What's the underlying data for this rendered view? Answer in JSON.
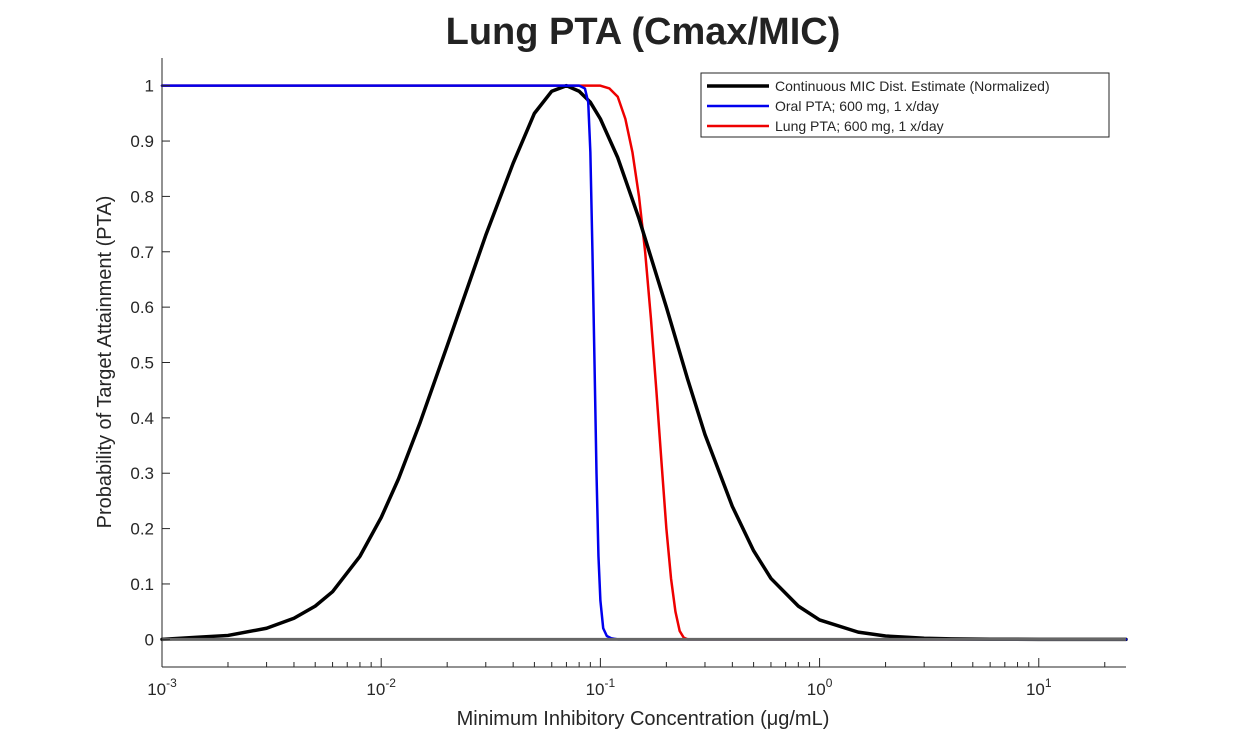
{
  "chart_data": {
    "type": "line",
    "title": "Lung PTA (Cmax/MIC)",
    "xlabel": "Minimum  Inhibitory  Concentration  (μg/mL)",
    "ylabel": "Probability of Target Attainment (PTA)",
    "x_scale": "log",
    "xlim": [
      0.001,
      25
    ],
    "ylim": [
      -0.05,
      1.05
    ],
    "x_ticks": [
      {
        "value": 0.001,
        "base": "10",
        "exp": "-3"
      },
      {
        "value": 0.01,
        "base": "10",
        "exp": "-2"
      },
      {
        "value": 0.1,
        "base": "10",
        "exp": "-1"
      },
      {
        "value": 1,
        "base": "10",
        "exp": "0"
      },
      {
        "value": 10,
        "base": "10",
        "exp": "1"
      }
    ],
    "y_ticks": [
      {
        "value": 0,
        "label": "0"
      },
      {
        "value": 0.1,
        "label": "0.1"
      },
      {
        "value": 0.2,
        "label": "0.2"
      },
      {
        "value": 0.3,
        "label": "0.3"
      },
      {
        "value": 0.4,
        "label": "0.4"
      },
      {
        "value": 0.5,
        "label": "0.5"
      },
      {
        "value": 0.6,
        "label": "0.6"
      },
      {
        "value": 0.7,
        "label": "0.7"
      },
      {
        "value": 0.8,
        "label": "0.8"
      },
      {
        "value": 0.9,
        "label": "0.9"
      },
      {
        "value": 1,
        "label": "1"
      }
    ],
    "grid": false,
    "legend_position": "top-right",
    "series": [
      {
        "name": "Continuous MIC Dist. Estimate (Normalized)",
        "color": "#000000",
        "x": [
          0.001,
          0.002,
          0.003,
          0.004,
          0.005,
          0.006,
          0.008,
          0.01,
          0.012,
          0.015,
          0.02,
          0.025,
          0.03,
          0.04,
          0.05,
          0.06,
          0.07,
          0.08,
          0.09,
          0.1,
          0.12,
          0.15,
          0.2,
          0.25,
          0.3,
          0.4,
          0.5,
          0.6,
          0.8,
          1,
          1.5,
          2,
          3,
          4,
          6,
          10,
          25
        ],
        "y": [
          0,
          0.007,
          0.02,
          0.038,
          0.06,
          0.086,
          0.15,
          0.22,
          0.29,
          0.39,
          0.53,
          0.64,
          0.73,
          0.86,
          0.95,
          0.99,
          1.0,
          0.99,
          0.97,
          0.94,
          0.87,
          0.76,
          0.6,
          0.47,
          0.37,
          0.24,
          0.16,
          0.11,
          0.06,
          0.035,
          0.013,
          0.006,
          0.002,
          0.0008,
          0.0002,
          0,
          0
        ]
      },
      {
        "name": "Oral PTA; 600 mg, 1 x/day",
        "color": "#0000ee",
        "x": [
          0.001,
          0.08,
          0.085,
          0.088,
          0.09,
          0.092,
          0.094,
          0.096,
          0.098,
          0.1,
          0.103,
          0.107,
          0.112,
          0.12,
          0.15,
          25
        ],
        "y": [
          1,
          1,
          0.995,
          0.97,
          0.88,
          0.7,
          0.5,
          0.3,
          0.15,
          0.07,
          0.02,
          0.006,
          0.002,
          0,
          0,
          0
        ]
      },
      {
        "name": "Lung PTA; 600 mg, 1 x/day",
        "color": "#ee0000",
        "x": [
          0.001,
          0.1,
          0.11,
          0.12,
          0.13,
          0.14,
          0.15,
          0.16,
          0.17,
          0.18,
          0.19,
          0.2,
          0.21,
          0.22,
          0.23,
          0.24,
          0.25,
          25
        ],
        "y": [
          1,
          1,
          0.995,
          0.98,
          0.94,
          0.88,
          0.8,
          0.7,
          0.58,
          0.45,
          0.32,
          0.2,
          0.11,
          0.05,
          0.015,
          0.003,
          0,
          0
        ]
      }
    ]
  }
}
